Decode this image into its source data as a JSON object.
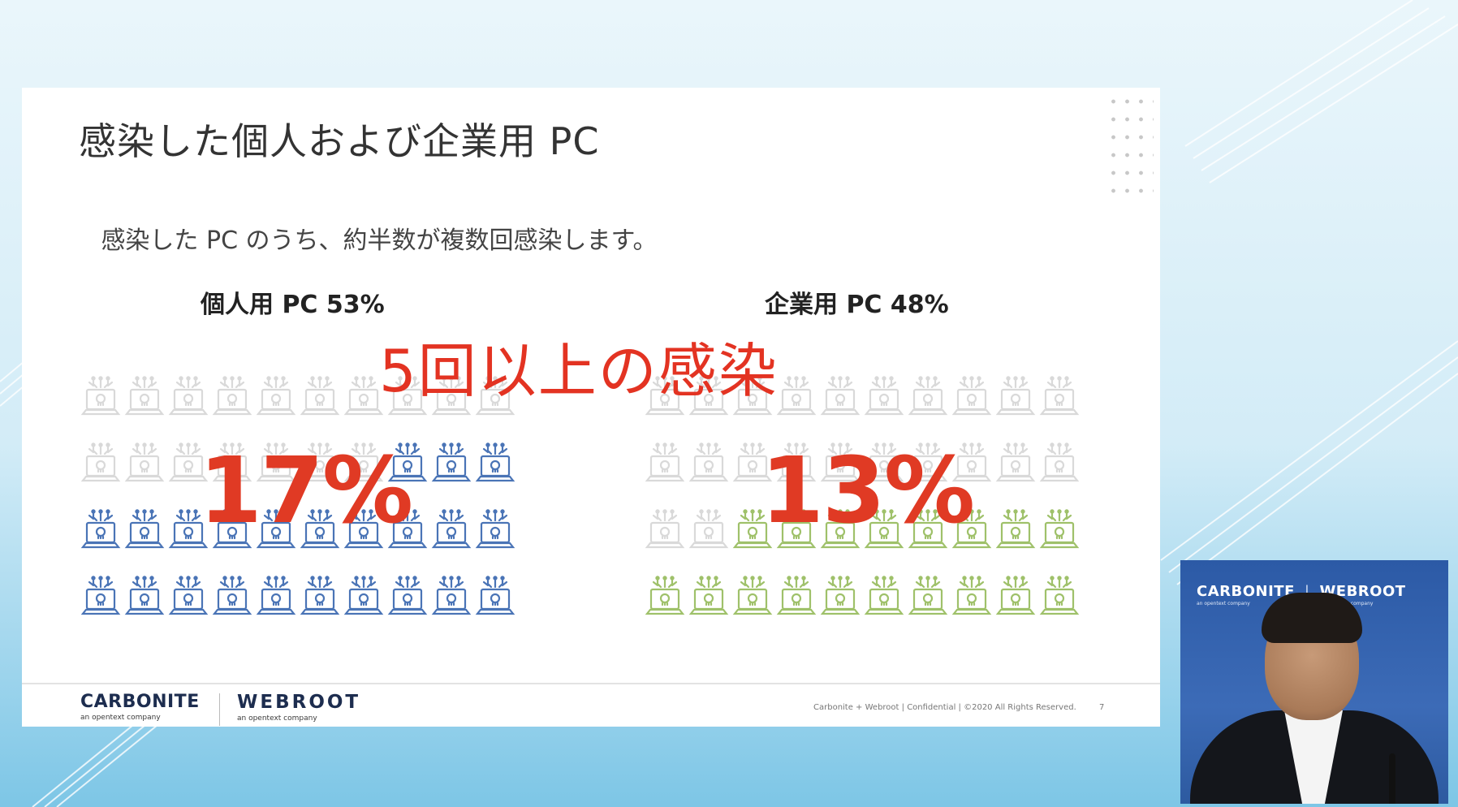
{
  "slide": {
    "title": "感染した個人および企業用 PC",
    "subtitle": "感染した PC のうち、約半数が複数回感染します。",
    "headline": "5回以上の感染",
    "groups": [
      {
        "label": "個人用 PC 53%",
        "big_percent": "17%",
        "highlighted_icons": 23,
        "total_icons": 40,
        "highlight_color": "#4a74b6"
      },
      {
        "label": "企業用 PC 48%",
        "big_percent": "13%",
        "highlighted_icons": 18,
        "total_icons": 40,
        "highlight_color": "#9fc16a"
      }
    ],
    "footer_text": "Carbonite + Webroot | Confidential | ©2020 All Rights Reserved.",
    "page_number": "7",
    "logos": {
      "carbonite": "CARBONITE",
      "carbonite_sub": "an opentext company",
      "webroot": "WEBROOT",
      "webroot_sub": "an opentext company"
    }
  },
  "video": {
    "logo_left": "CARBONITE",
    "logo_right": "WEBROOT",
    "logo_sub_left": "an opentext company",
    "logo_sub_right": "an opentext company",
    "separator": "|"
  },
  "colors": {
    "accent_red": "#e03a24",
    "icon_inactive": "#d9d9d9",
    "icon_blue": "#4a74b6",
    "icon_green": "#9fc16a"
  }
}
